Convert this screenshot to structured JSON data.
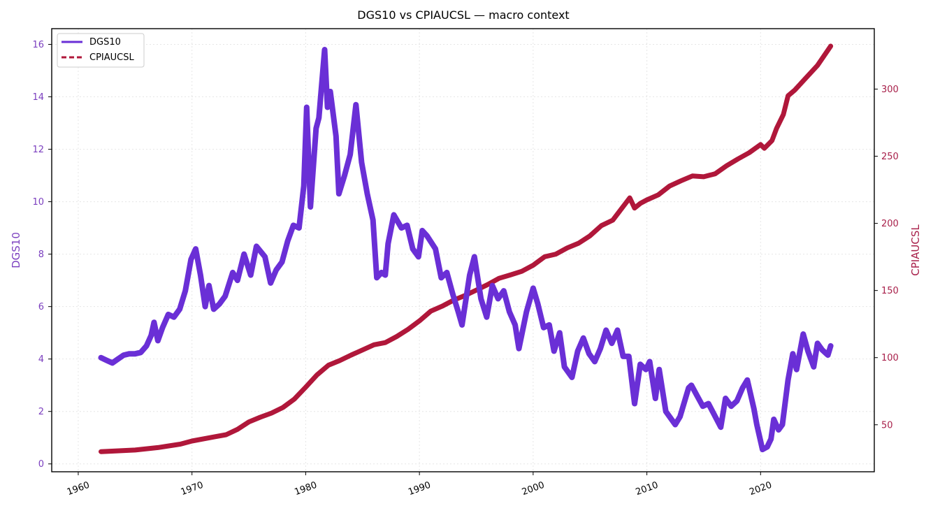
{
  "chart_data": {
    "type": "line",
    "title": "DGS10 vs CPIAUCSL — macro context",
    "xlabel": "",
    "x_axis": {
      "type": "date",
      "range": [
        "1957-09-01",
        "2029-12-31"
      ],
      "ticks": [
        "1960",
        "1970",
        "1980",
        "1990",
        "2000",
        "2010",
        "2020"
      ]
    },
    "y_axes": {
      "left": {
        "label": "DGS10",
        "range": [
          -0.3,
          16.6
        ],
        "ticks": [
          0,
          2,
          4,
          6,
          8,
          10,
          12,
          14,
          16
        ],
        "color": "#7b3fbf"
      },
      "right": {
        "label": "CPIAUCSL",
        "range": [
          15,
          345
        ],
        "ticks": [
          50,
          100,
          150,
          200,
          250,
          300
        ],
        "color": "#a8204a"
      }
    },
    "grid": true,
    "legend": {
      "position": "top-left"
    },
    "series": [
      {
        "name": "DGS10",
        "axis": "left",
        "color": "#6a2fd6",
        "style": "solid",
        "x": [
          "1962-01-01",
          "1962-07-01",
          "1963-01-01",
          "1963-07-01",
          "1964-01-01",
          "1964-07-01",
          "1965-01-01",
          "1965-07-01",
          "1966-01-01",
          "1966-06-01",
          "1966-09-01",
          "1967-01-01",
          "1967-06-01",
          "1967-12-01",
          "1968-06-01",
          "1968-12-01",
          "1969-06-01",
          "1969-12-01",
          "1970-05-01",
          "1970-10-01",
          "1971-03-01",
          "1971-07-01",
          "1971-12-01",
          "1972-06-01",
          "1972-12-01",
          "1973-08-01",
          "1974-01-01",
          "1974-08-01",
          "1975-03-01",
          "1975-09-01",
          "1976-06-01",
          "1976-12-01",
          "1977-06-01",
          "1977-12-01",
          "1978-06-01",
          "1978-12-01",
          "1979-06-01",
          "1979-11-01",
          "1980-02-01",
          "1980-06-01",
          "1980-12-01",
          "1981-03-01",
          "1981-09-01",
          "1981-12-01",
          "1982-03-01",
          "1982-09-01",
          "1982-12-01",
          "1983-06-01",
          "1983-12-01",
          "1984-06-01",
          "1984-12-01",
          "1985-06-01",
          "1985-12-01",
          "1986-04-01",
          "1986-09-01",
          "1987-01-01",
          "1987-04-01",
          "1987-10-01",
          "1988-06-01",
          "1988-12-01",
          "1989-06-01",
          "1989-12-01",
          "1990-04-01",
          "1990-09-01",
          "1991-06-01",
          "1991-12-01",
          "1992-06-01",
          "1992-12-01",
          "1993-06-01",
          "1993-10-01",
          "1994-06-01",
          "1994-11-01",
          "1995-06-01",
          "1995-12-01",
          "1996-06-01",
          "1996-12-01",
          "1997-06-01",
          "1997-12-01",
          "1998-06-01",
          "1998-10-01",
          "1999-06-01",
          "2000-01-01",
          "2000-06-01",
          "2000-12-01",
          "2001-06-01",
          "2001-11-01",
          "2002-05-01",
          "2002-10-01",
          "2003-06-01",
          "2003-12-01",
          "2004-06-01",
          "2004-12-01",
          "2005-06-01",
          "2005-12-01",
          "2006-06-01",
          "2006-12-01",
          "2007-06-01",
          "2007-12-01",
          "2008-06-01",
          "2008-12-01",
          "2009-06-01",
          "2009-12-01",
          "2010-04-01",
          "2010-10-01",
          "2011-02-01",
          "2011-09-01",
          "2012-07-01",
          "2012-12-01",
          "2013-09-01",
          "2013-12-01",
          "2014-06-01",
          "2014-12-01",
          "2015-06-01",
          "2016-07-01",
          "2016-12-01",
          "2017-06-01",
          "2017-12-01",
          "2018-06-01",
          "2018-11-01",
          "2019-06-01",
          "2019-09-01",
          "2020-03-01",
          "2020-08-01",
          "2020-12-01",
          "2021-03-01",
          "2021-08-01",
          "2021-12-01",
          "2022-06-01",
          "2022-11-01",
          "2023-03-01",
          "2023-10-01",
          "2024-03-01",
          "2024-09-01",
          "2025-01-01",
          "2025-06-01",
          "2025-12-01",
          "2026-03-01"
        ],
        "y": [
          4.05,
          3.95,
          3.85,
          4.0,
          4.15,
          4.2,
          4.2,
          4.25,
          4.5,
          4.9,
          5.4,
          4.7,
          5.2,
          5.7,
          5.6,
          5.9,
          6.6,
          7.8,
          8.2,
          7.2,
          6.0,
          6.8,
          5.9,
          6.1,
          6.4,
          7.3,
          7.0,
          8.0,
          7.2,
          8.3,
          7.9,
          6.9,
          7.4,
          7.7,
          8.5,
          9.1,
          9.0,
          10.6,
          13.6,
          9.8,
          12.8,
          13.2,
          15.8,
          13.6,
          14.2,
          12.5,
          10.3,
          11.0,
          11.8,
          13.7,
          11.5,
          10.3,
          9.3,
          7.1,
          7.3,
          7.2,
          8.4,
          9.5,
          9.0,
          9.1,
          8.2,
          7.9,
          8.9,
          8.7,
          8.2,
          7.1,
          7.3,
          6.5,
          5.8,
          5.3,
          7.2,
          7.9,
          6.3,
          5.6,
          6.8,
          6.3,
          6.6,
          5.8,
          5.3,
          4.4,
          5.8,
          6.7,
          6.1,
          5.2,
          5.3,
          4.3,
          5.0,
          3.7,
          3.3,
          4.3,
          4.8,
          4.2,
          3.9,
          4.4,
          5.1,
          4.6,
          5.1,
          4.1,
          4.1,
          2.3,
          3.8,
          3.6,
          3.9,
          2.5,
          3.6,
          2.0,
          1.5,
          1.8,
          2.9,
          3.0,
          2.6,
          2.2,
          2.3,
          1.4,
          2.5,
          2.2,
          2.4,
          2.9,
          3.2,
          2.1,
          1.5,
          0.55,
          0.65,
          0.95,
          1.7,
          1.3,
          1.5,
          3.2,
          4.2,
          3.6,
          4.95,
          4.3,
          3.7,
          4.6,
          4.35,
          4.15,
          4.5
        ]
      },
      {
        "name": "CPIAUCSL",
        "axis": "right",
        "color": "#b0173a",
        "style": "dashed",
        "x": [
          "1962-01-01",
          "1965-01-01",
          "1967-01-01",
          "1969-01-01",
          "1970-01-01",
          "1972-01-01",
          "1973-01-01",
          "1974-01-01",
          "1975-01-01",
          "1976-01-01",
          "1977-01-01",
          "1978-01-01",
          "1979-01-01",
          "1980-01-01",
          "1981-01-01",
          "1982-01-01",
          "1983-01-01",
          "1984-01-01",
          "1985-01-01",
          "1986-01-01",
          "1987-01-01",
          "1988-01-01",
          "1989-01-01",
          "1990-01-01",
          "1991-01-01",
          "1992-01-01",
          "1993-01-01",
          "1994-01-01",
          "1995-01-01",
          "1996-01-01",
          "1997-01-01",
          "1998-01-01",
          "1999-01-01",
          "2000-01-01",
          "2001-01-01",
          "2002-01-01",
          "2003-01-01",
          "2004-01-01",
          "2005-01-01",
          "2006-01-01",
          "2007-01-01",
          "2008-07-01",
          "2008-12-01",
          "2009-06-01",
          "2010-01-01",
          "2011-01-01",
          "2012-01-01",
          "2013-01-01",
          "2014-01-01",
          "2015-01-01",
          "2016-01-01",
          "2017-01-01",
          "2018-01-01",
          "2019-01-01",
          "2020-01-01",
          "2020-05-01",
          "2021-01-01",
          "2021-06-01",
          "2022-01-01",
          "2022-06-01",
          "2023-01-01",
          "2024-01-01",
          "2025-01-01",
          "2026-03-01"
        ],
        "y": [
          30.0,
          31.2,
          33.0,
          35.6,
          37.9,
          41.1,
          42.6,
          46.6,
          52.1,
          55.6,
          58.7,
          62.9,
          69.1,
          78.0,
          87.2,
          94.4,
          97.8,
          101.9,
          105.7,
          109.6,
          111.2,
          115.7,
          121.1,
          127.4,
          134.6,
          138.3,
          142.8,
          146.2,
          150.3,
          154.4,
          159.1,
          161.6,
          164.3,
          168.8,
          175.1,
          177.1,
          181.7,
          185.2,
          190.7,
          198.3,
          202.4,
          219.0,
          211.4,
          214.8,
          217.5,
          221.2,
          227.8,
          231.7,
          235.3,
          234.7,
          236.9,
          242.8,
          247.9,
          252.6,
          258.7,
          255.9,
          261.6,
          270.9,
          281.1,
          295.0,
          299.2,
          308.4,
          317.6,
          332.0
        ]
      }
    ]
  }
}
